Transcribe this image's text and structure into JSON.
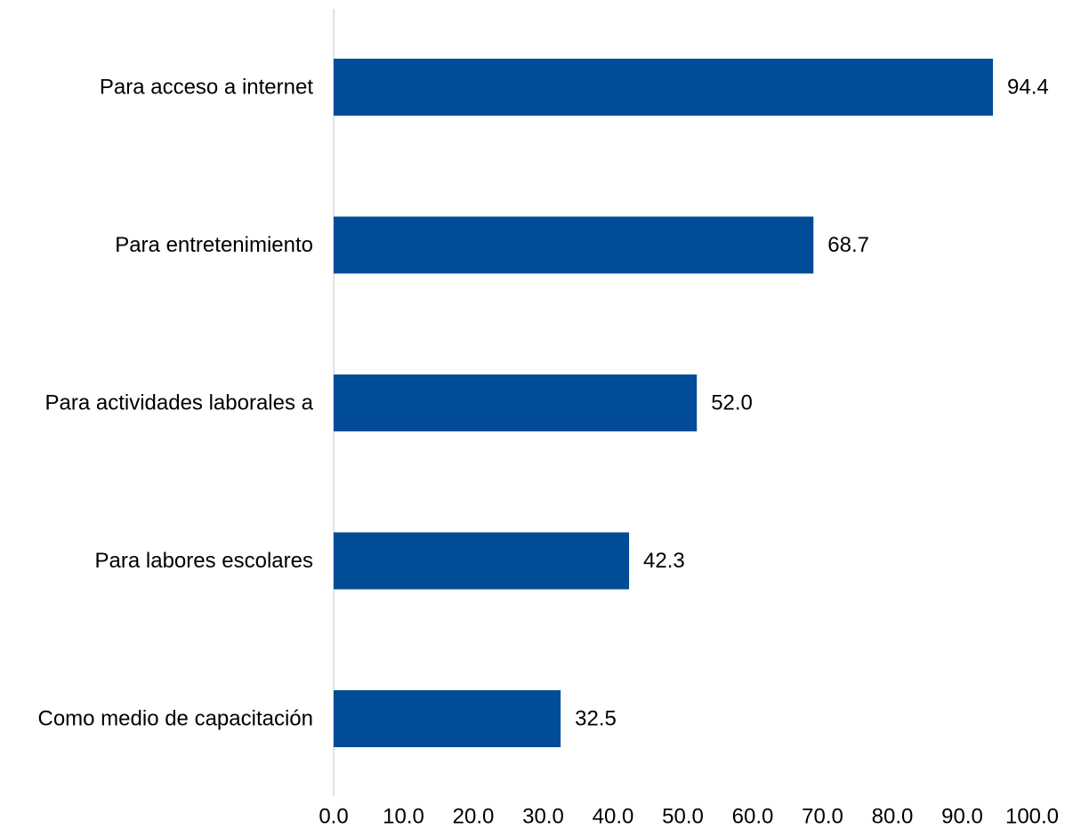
{
  "chart_data": {
    "type": "bar",
    "orientation": "horizontal",
    "categories": [
      "Para acceso a internet",
      "Para entretenimiento",
      "Para actividades laborales a",
      "Para labores escolares",
      "Como medio de capacitación"
    ],
    "values": [
      94.4,
      68.7,
      52.0,
      42.3,
      32.5
    ],
    "data_labels": [
      "94.4",
      "68.7",
      "52.0",
      "42.3",
      "32.5"
    ],
    "x_ticks": [
      "0.0",
      "10.0",
      "20.0",
      "30.0",
      "40.0",
      "50.0",
      "60.0",
      "70.0",
      "80.0",
      "90.0",
      "100.0"
    ],
    "xlim": [
      0,
      100
    ],
    "grid": false,
    "legend": "none",
    "bar_color": "#004C97",
    "axis_color": "#D9D9D9"
  }
}
